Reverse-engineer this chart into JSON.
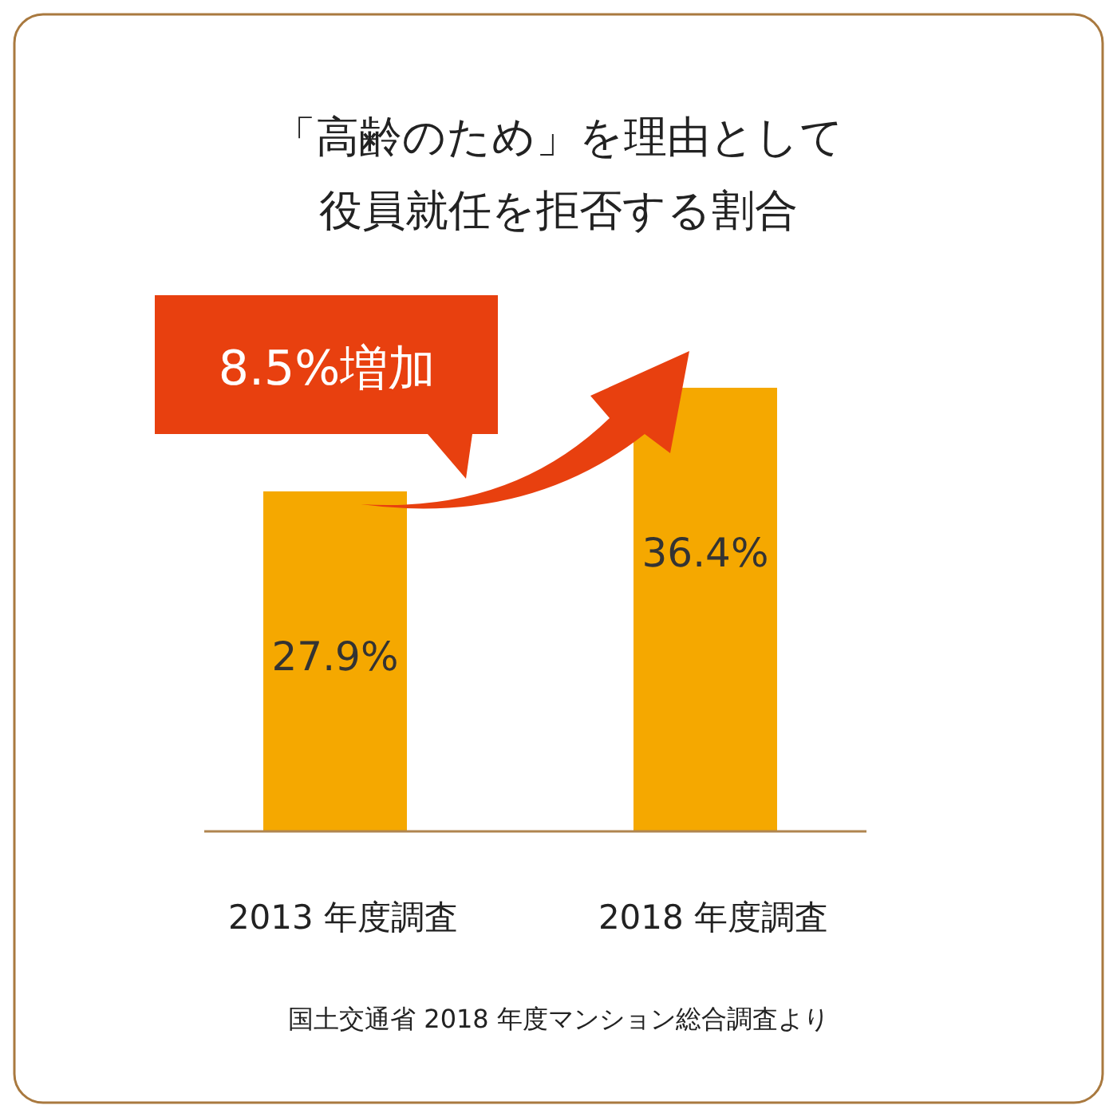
{
  "chart_data": {
    "type": "bar",
    "title": "「高齢のため」を理由として",
    "subtitle": "役員就任を拒否する割合",
    "categories": [
      "2013 年度調査",
      "2018 年度調査"
    ],
    "values": [
      27.9,
      36.4
    ],
    "value_labels": [
      "27.9%",
      "36.4%"
    ],
    "color": "#f5a800",
    "annotations": [
      "8.5%増加",
      "国土交通省 2018 年度マンション総合調査より"
    ]
  }
}
